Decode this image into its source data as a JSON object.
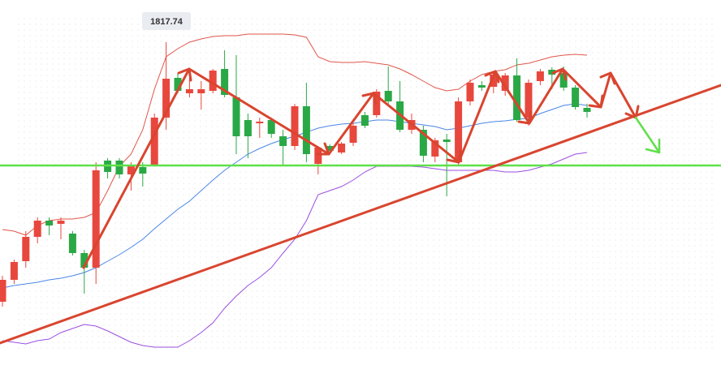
{
  "chart_data": {
    "type": "candlestick",
    "open": [
      1721.74,
      1729.84,
      1736.74,
      1745.74,
      1751.74,
      1750.54,
      1746.94,
      1739.74,
      1734.34,
      1773.94,
      1773.94,
      1768.84,
      1771.54,
      1772.14,
      1789.84,
      1804.54,
      1798.84,
      1798.84,
      1799.74,
      1807.84,
      1797.34,
      1788.94,
      1787.74,
      1788.94,
      1782.94,
      1779.34,
      1794.04,
      1772.74,
      1779.34,
      1776.94,
      1780.54,
      1790.74,
      1790.74,
      1799.74,
      1795.84,
      1785.34,
      1785.34,
      1775.44,
      1781.74,
      1773.34,
      1795.84,
      1801.84,
      1801.24,
      1799.74,
      1805.44,
      1789.84,
      1803.34,
      1807.54,
      1806.34,
      1800.94,
      1793.44
    ],
    "high": [
      1731.34,
      1737.34,
      1747.84,
      1752.94,
      1752.94,
      1752.94,
      1747.84,
      1740.94,
      1773.34,
      1774.84,
      1774.84,
      1773.34,
      1773.34,
      1791.34,
      1817.74,
      1806.34,
      1804.84,
      1803.34,
      1807.84,
      1814.74,
      1812.94,
      1791.34,
      1789.84,
      1789.84,
      1785.34,
      1794.94,
      1802.74,
      1779.34,
      1779.94,
      1780.84,
      1787.74,
      1791.94,
      1800.34,
      1808.74,
      1803.34,
      1791.34,
      1786.84,
      1782.34,
      1783.84,
      1797.34,
      1803.94,
      1803.34,
      1806.94,
      1806.34,
      1811.74,
      1803.94,
      1807.84,
      1808.44,
      1808.74,
      1801.84,
      1794.94
    ],
    "low": [
      1719.94,
      1728.34,
      1734.34,
      1743.34,
      1746.34,
      1744.84,
      1738.84,
      1724.74,
      1728.34,
      1767.34,
      1767.34,
      1762.84,
      1764.34,
      1771.84,
      1785.34,
      1798.84,
      1797.34,
      1792.84,
      1798.84,
      1797.34,
      1776.34,
      1774.84,
      1782.34,
      1782.34,
      1771.84,
      1777.84,
      1773.34,
      1768.84,
      1776.34,
      1776.34,
      1779.34,
      1785.94,
      1789.84,
      1794.34,
      1784.44,
      1783.84,
      1773.34,
      1773.34,
      1760.74,
      1771.84,
      1794.34,
      1799.74,
      1798.84,
      1797.94,
      1788.34,
      1786.84,
      1801.84,
      1800.34,
      1799.74,
      1792.84,
      1789.84
    ],
    "close": [
      1729.84,
      1736.44,
      1745.74,
      1751.74,
      1749.94,
      1751.74,
      1739.74,
      1734.34,
      1770.34,
      1769.74,
      1768.84,
      1771.84,
      1769.14,
      1789.84,
      1804.24,
      1799.74,
      1800.34,
      1800.34,
      1807.24,
      1798.24,
      1782.94,
      1782.94,
      1788.34,
      1783.84,
      1779.34,
      1794.04,
      1776.34,
      1778.74,
      1777.54,
      1780.24,
      1786.84,
      1786.84,
      1799.44,
      1795.84,
      1785.34,
      1788.94,
      1775.74,
      1781.44,
      1780.84,
      1795.84,
      1802.74,
      1800.94,
      1805.74,
      1805.44,
      1788.94,
      1802.74,
      1806.94,
      1805.74,
      1800.94,
      1793.74,
      1791.94
    ],
    "up_color": "#e8473d",
    "down_color": "#2aa845",
    "ylim": [
      1698.34,
      1833.34
    ],
    "overlays": [
      {
        "color": "#e0564a",
        "values": [
          1748.44,
          1747.84,
          1746.34,
          1749.94,
          1751.74,
          1752.34,
          1752.34,
          1752.94,
          1754.74,
          1762.84,
          1771.84,
          1776.34,
          1785.34,
          1800.34,
          1812.34,
          1815.34,
          1817.74,
          1818.94,
          1819.84,
          1820.14,
          1820.14,
          1820.74,
          1820.74,
          1820.74,
          1820.74,
          1820.44,
          1819.54,
          1812.34,
          1810.54,
          1810.24,
          1810.24,
          1810.54,
          1809.94,
          1809.34,
          1807.84,
          1805.74,
          1803.34,
          1800.94,
          1799.74,
          1800.34,
          1803.34,
          1805.74,
          1806.94,
          1807.54,
          1809.34,
          1809.94,
          1811.14,
          1812.34,
          1812.94,
          1813.24,
          1812.94
        ]
      },
      {
        "color": "#4a86e8",
        "values": [
          1726.84,
          1727.74,
          1728.34,
          1728.94,
          1729.84,
          1730.44,
          1731.34,
          1732.54,
          1734.34,
          1736.74,
          1739.14,
          1741.84,
          1744.84,
          1748.74,
          1752.34,
          1755.94,
          1758.94,
          1762.84,
          1766.74,
          1770.34,
          1773.34,
          1776.34,
          1778.44,
          1780.24,
          1781.74,
          1782.94,
          1784.44,
          1785.94,
          1786.84,
          1787.44,
          1787.74,
          1788.34,
          1788.94,
          1788.94,
          1788.34,
          1787.74,
          1787.14,
          1786.54,
          1785.34,
          1785.94,
          1786.84,
          1787.74,
          1788.34,
          1788.64,
          1789.24,
          1789.54,
          1791.34,
          1792.84,
          1794.34,
          1794.94,
          1794.34
        ]
      },
      {
        "color": "#9b4fe0",
        "values": [
          1707.34,
          1706.74,
          1706.14,
          1707.34,
          1707.94,
          1710.34,
          1711.84,
          1713.34,
          1712.74,
          1710.94,
          1708.84,
          1706.74,
          1705.54,
          1704.94,
          1704.94,
          1704.94,
          1707.34,
          1710.34,
          1713.94,
          1719.34,
          1723.84,
          1727.74,
          1730.74,
          1734.34,
          1739.74,
          1744.84,
          1751.74,
          1761.34,
          1762.84,
          1764.34,
          1766.74,
          1769.74,
          1771.84,
          1771.84,
          1771.84,
          1771.84,
          1771.54,
          1770.94,
          1770.34,
          1770.34,
          1770.34,
          1770.34,
          1770.34,
          1769.74,
          1769.74,
          1770.34,
          1771.54,
          1772.74,
          1774.54,
          1776.34,
          1776.94
        ]
      }
    ],
    "annotations": [
      {
        "text": "1817.74"
      }
    ]
  }
}
